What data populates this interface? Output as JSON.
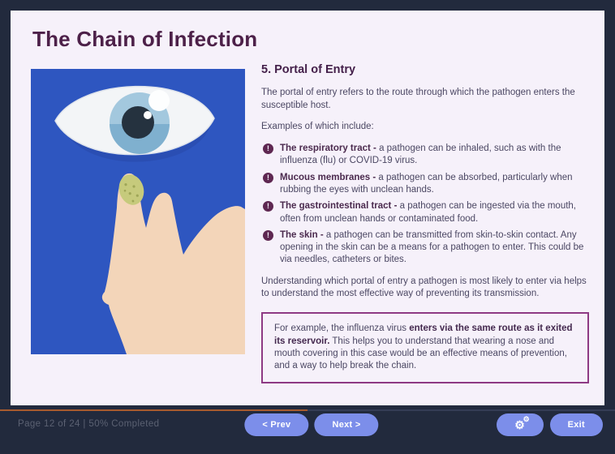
{
  "slide": {
    "title": "The Chain of Infection",
    "heading": "5. Portal of Entry",
    "intro": "The portal of entry refers to the route through which the pathogen enters the susceptible host.",
    "examples_label": "Examples of which include:",
    "bullets": [
      {
        "icon": "exclamation-circle-icon",
        "glyph": "!",
        "lead": "The respiratory tract -",
        "text": " a pathogen can be inhaled, such as with the influenza (flu) or COVID-19 virus."
      },
      {
        "icon": "exclamation-circle-icon",
        "glyph": "!",
        "lead": "Mucous membranes -",
        "text": " a pathogen can be absorbed, particularly when rubbing the eyes with unclean hands."
      },
      {
        "icon": "exclamation-circle-icon",
        "glyph": "!",
        "lead": "The gastrointestinal tract -",
        "text": " a pathogen can be ingested via the mouth, often from unclean hands or contaminated food."
      },
      {
        "icon": "exclamation-circle-icon",
        "glyph": "!",
        "lead": "The skin -",
        "text": " a pathogen can be transmitted from skin-to-skin contact. Any opening in the skin can be a means for a pathogen to enter. This could be via needles, catheters or bites."
      }
    ],
    "summary": "Understanding which portal of entry a pathogen is most likely to enter via helps to understand the most effective way of preventing its transmission.",
    "callout": {
      "pre": "For example, the influenza virus ",
      "bold": "enters via the same route as it exited its reservoir.",
      "post": " This helps you to understand that wearing a nose and mouth covering in this case would be an effective means of prevention, and a way to help break the chain."
    }
  },
  "illustration": {
    "name": "eye-and-hand-with-germs-illustration",
    "background_color": "#2e56c0"
  },
  "footer": {
    "page_status": "Page 12 of 24 | 50% Completed",
    "progress_percent": 50,
    "prev_label": "< Prev",
    "next_label": "Next >",
    "settings_icon": "gears-icon",
    "exit_label": "Exit"
  },
  "colors": {
    "frame_background": "#222a3d",
    "panel_background": "#f6f1fa",
    "title_text": "#4d2149",
    "body_text": "#4b4763",
    "bold_lead_text": "#4b2a4e",
    "bullet_icon": "#5e2751",
    "callout_border": "#8e3a84",
    "progress_fill": "#a85b2e",
    "button_background": "#7c8eea",
    "button_text": "#ffffff",
    "footer_text": "#5b6172"
  }
}
